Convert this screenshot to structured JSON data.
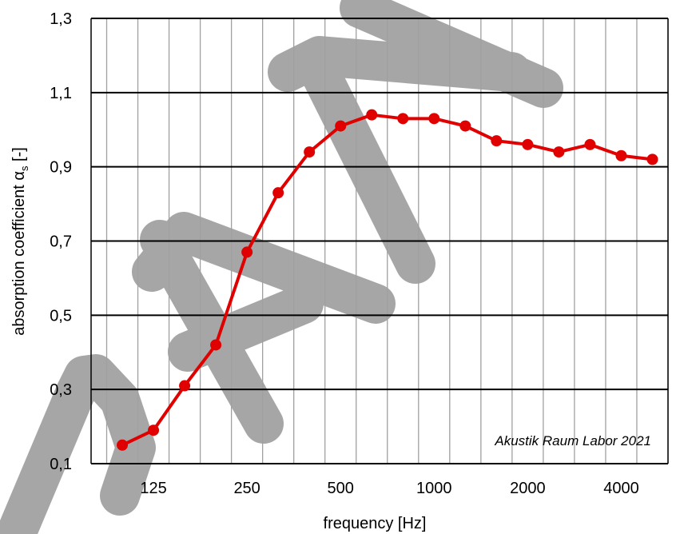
{
  "chart_data": {
    "type": "line",
    "xlabel": "frequency [Hz]",
    "ylabel_main": "absorption coefficient α",
    "ylabel_sub": "s",
    "ylabel_suffix": " [-]",
    "annotation": "Akustik Raum Labor 2021",
    "watermark": "DRAFT",
    "ylim": [
      0.1,
      1.3
    ],
    "yticks": [
      "0,1",
      "0,3",
      "0,5",
      "0,7",
      "0,9",
      "1,1",
      "1,3"
    ],
    "xticks": [
      "125",
      "250",
      "500",
      "1000",
      "2000",
      "4000"
    ],
    "grid": true,
    "x_scale": "third-octave",
    "line_color": "#e00000",
    "x": [
      100,
      125,
      160,
      200,
      250,
      315,
      400,
      500,
      630,
      800,
      1000,
      1250,
      1600,
      2000,
      2500,
      3150,
      4000,
      5000
    ],
    "series": [
      {
        "values": [
          0.15,
          0.19,
          0.31,
          0.42,
          0.67,
          0.83,
          0.94,
          1.01,
          1.04,
          1.03,
          1.03,
          1.01,
          0.97,
          0.96,
          0.94,
          0.96,
          0.93,
          0.92
        ]
      }
    ]
  }
}
